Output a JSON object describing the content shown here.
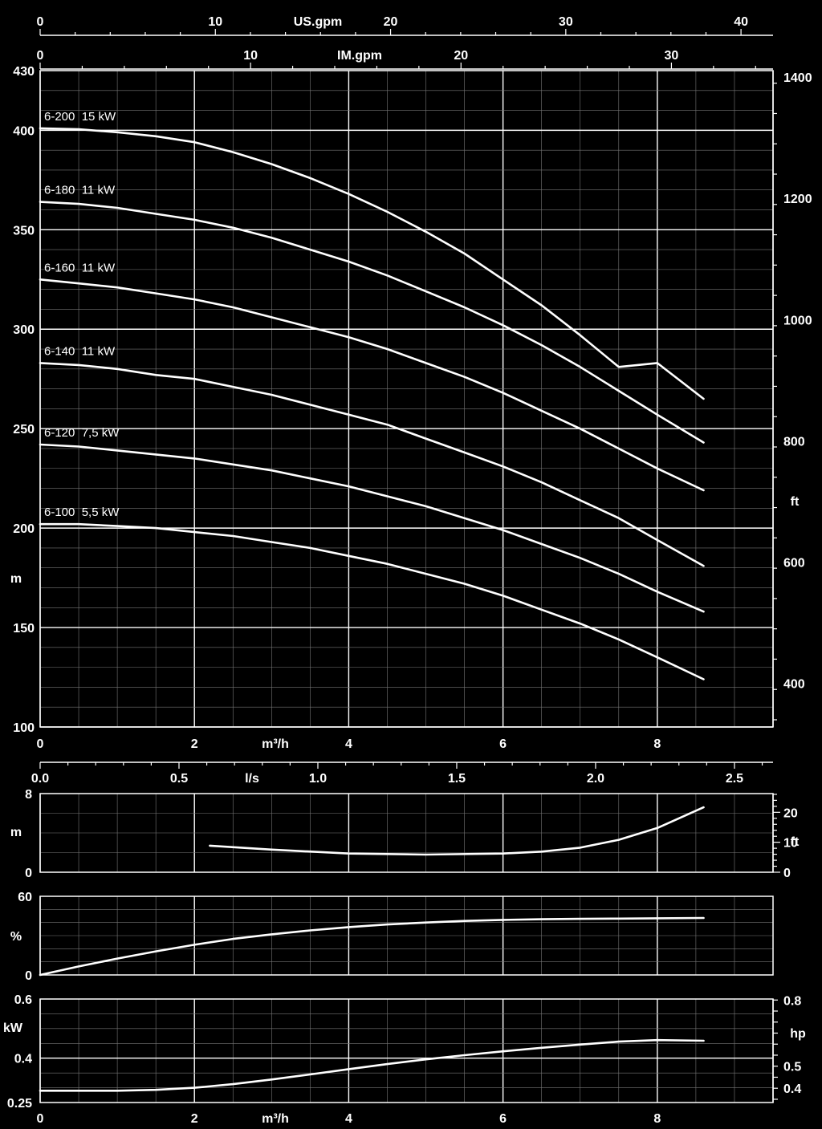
{
  "chart_data": [
    {
      "type": "line",
      "title": "",
      "xlabel": "m³/h",
      "ylabel": "m",
      "y2label": "ft",
      "xlim": [
        0,
        9.5
      ],
      "ylim": [
        100,
        430
      ],
      "x_ticks": [
        "0",
        "2",
        "4",
        "6",
        "8"
      ],
      "y_ticks": [
        "100",
        "150",
        "200",
        "250",
        "300",
        "350",
        "400",
        "430"
      ],
      "y2_ticks": [
        "400",
        "600",
        "800",
        "1000",
        "1200",
        "1400"
      ],
      "top_axis_1": {
        "label": "US.gpm",
        "ticks": [
          "0",
          "10",
          "20",
          "30",
          "40"
        ]
      },
      "top_axis_2": {
        "label": "IM.gpm",
        "ticks": [
          "0",
          "10",
          "20",
          "30"
        ]
      },
      "grid": true,
      "series": [
        {
          "name": "6-200  15 kW",
          "x": [
            0,
            0.5,
            1,
            1.5,
            2,
            2.5,
            3,
            3.5,
            4,
            4.5,
            5,
            5.5,
            6,
            6.5,
            7,
            7.5,
            8,
            8.6
          ],
          "y": [
            401,
            400.5,
            399,
            397,
            394,
            389,
            383,
            376,
            368,
            359,
            349,
            338,
            325,
            312,
            297,
            281,
            283,
            265
          ]
        },
        {
          "name": "6-180  11 kW",
          "x": [
            0,
            0.5,
            1,
            1.5,
            2,
            2.5,
            3,
            3.5,
            4,
            4.5,
            5,
            5.5,
            6,
            6.5,
            7,
            7.5,
            8,
            8.6
          ],
          "y": [
            364,
            363,
            361,
            358,
            355,
            351,
            346,
            340,
            334,
            327,
            319,
            311,
            302,
            292,
            281,
            269,
            257,
            243
          ]
        },
        {
          "name": "6-160  11 kW",
          "x": [
            0,
            0.5,
            1,
            1.5,
            2,
            2.5,
            3,
            3.5,
            4,
            4.5,
            5,
            5.5,
            6,
            6.5,
            7,
            7.5,
            8,
            8.6
          ],
          "y": [
            325,
            323,
            321,
            318,
            315,
            311,
            306,
            301,
            296,
            290,
            283,
            276,
            268,
            259,
            250,
            240,
            230,
            219
          ]
        },
        {
          "name": "6-140  11 kW",
          "x": [
            0,
            0.5,
            1,
            1.5,
            2,
            2.5,
            3,
            3.5,
            4,
            4.5,
            5,
            5.5,
            6,
            6.5,
            7,
            7.5,
            8,
            8.6
          ],
          "y": [
            283,
            282,
            280,
            277,
            275,
            271,
            267,
            262,
            257,
            252,
            245,
            238,
            231,
            223,
            214,
            205,
            194,
            181
          ]
        },
        {
          "name": "6-120  7,5 kW",
          "x": [
            0,
            0.5,
            1,
            1.5,
            2,
            2.5,
            3,
            3.5,
            4,
            4.5,
            5,
            5.5,
            6,
            6.5,
            7,
            7.5,
            8,
            8.6
          ],
          "y": [
            242,
            241,
            239,
            237,
            235,
            232,
            229,
            225,
            221,
            216,
            211,
            205,
            199,
            192,
            185,
            177,
            168,
            158
          ]
        },
        {
          "name": "6-100  5,5 kW",
          "x": [
            0,
            0.5,
            1,
            1.5,
            2,
            2.5,
            3,
            3.5,
            4,
            4.5,
            5,
            5.5,
            6,
            6.5,
            7,
            7.5,
            8,
            8.6
          ],
          "y": [
            202,
            202,
            201,
            200,
            198,
            196,
            193,
            190,
            186,
            182,
            177,
            172,
            166,
            159,
            152,
            144,
            135,
            124
          ]
        }
      ]
    },
    {
      "type": "line",
      "title": "",
      "xlabel": "l/s",
      "ylabel": "m",
      "y2label": "ft",
      "xlim": [
        0,
        9.5
      ],
      "ylim": [
        0,
        8
      ],
      "x_ticks": [
        "0.0",
        "0.5",
        "1.0",
        "1.5",
        "2.0",
        "2.5"
      ],
      "y_ticks": [
        "0",
        "8"
      ],
      "y2_ticks": [
        "0",
        "10",
        "20"
      ],
      "grid": true,
      "series": [
        {
          "name": "",
          "x": [
            2.2,
            3,
            4,
            5,
            6,
            6.5,
            7,
            7.5,
            8,
            8.6
          ],
          "y": [
            2.7,
            2.3,
            1.9,
            1.8,
            1.9,
            2.1,
            2.5,
            3.3,
            4.5,
            6.6
          ]
        }
      ]
    },
    {
      "type": "line",
      "title": "",
      "xlabel": "",
      "ylabel": "%",
      "xlim": [
        0,
        9.5
      ],
      "ylim": [
        0,
        60
      ],
      "y_ticks": [
        "0",
        "60"
      ],
      "grid": true,
      "series": [
        {
          "name": "",
          "x": [
            0,
            0.5,
            1,
            1.5,
            2,
            2.5,
            3,
            3.5,
            4,
            4.5,
            5,
            5.5,
            6,
            6.5,
            7,
            7.5,
            8,
            8.6
          ],
          "y": [
            0,
            6.5,
            12.5,
            18,
            23,
            27.5,
            31,
            34,
            36.5,
            38.5,
            40,
            41.2,
            42,
            42.5,
            42.8,
            43,
            43.2,
            43.5
          ]
        }
      ]
    },
    {
      "type": "line",
      "title": "",
      "xlabel": "m³/h",
      "ylabel": "kW",
      "y2label": "hp",
      "xlim": [
        0,
        9.5
      ],
      "ylim": [
        0.25,
        0.6
      ],
      "x_ticks": [
        "0",
        "2",
        "4",
        "6",
        "8"
      ],
      "y_ticks": [
        "0.25",
        "0.4",
        "0.6"
      ],
      "y2_ticks": [
        "0.4",
        "0.5",
        "0.8"
      ],
      "grid": true,
      "series": [
        {
          "name": "",
          "x": [
            0,
            0.5,
            1,
            1.5,
            2,
            2.5,
            3,
            3.5,
            4,
            4.5,
            5,
            5.5,
            6,
            6.5,
            7,
            7.5,
            8,
            8.6
          ],
          "y": [
            0.29,
            0.29,
            0.29,
            0.293,
            0.3,
            0.312,
            0.328,
            0.345,
            0.363,
            0.38,
            0.396,
            0.41,
            0.423,
            0.435,
            0.446,
            0.456,
            0.461,
            0.459
          ]
        }
      ]
    }
  ]
}
